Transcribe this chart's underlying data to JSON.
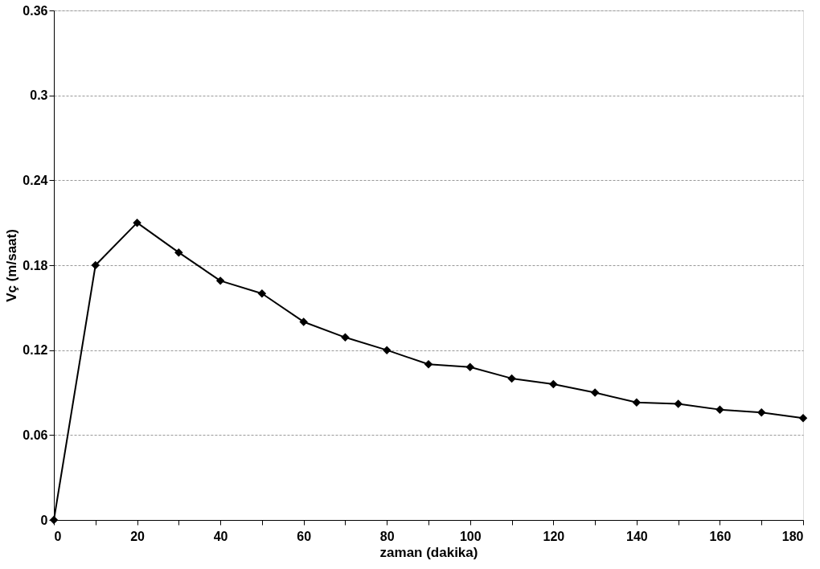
{
  "chart_data": {
    "type": "line",
    "xlabel": "zaman (dakika)",
    "ylabel": "Vç (m/saat)",
    "x": [
      0,
      10,
      20,
      30,
      40,
      50,
      60,
      70,
      80,
      90,
      100,
      110,
      120,
      130,
      140,
      150,
      160,
      170,
      180
    ],
    "series": [
      {
        "color": "#000000",
        "values": [
          0,
          0.18,
          0.21,
          0.189,
          0.169,
          0.16,
          0.14,
          0.129,
          0.12,
          0.11,
          0.108,
          0.1,
          0.096,
          0.09,
          0.083,
          0.082,
          0.078,
          0.076,
          0.072
        ]
      }
    ],
    "xlim": [
      0,
      180
    ],
    "xticks": [
      0,
      {
        "value": 10,
        "label": null
      },
      20,
      {
        "value": 30,
        "label": null
      },
      40,
      {
        "value": 50,
        "label": null
      },
      60,
      {
        "value": 70,
        "label": null
      },
      80,
      {
        "value": 90,
        "label": null
      },
      100,
      {
        "value": 110,
        "label": null
      },
      120,
      {
        "value": 130,
        "label": null
      },
      140,
      {
        "value": 150,
        "label": null
      },
      160,
      {
        "value": 170,
        "label": null
      },
      180
    ],
    "ylim": [
      0,
      0.36
    ],
    "yticks": [
      0,
      0.06,
      0.12,
      0.18,
      0.24,
      0.3,
      0.36
    ],
    "grid": "y",
    "marker": "diamond",
    "line_style": "solid"
  }
}
